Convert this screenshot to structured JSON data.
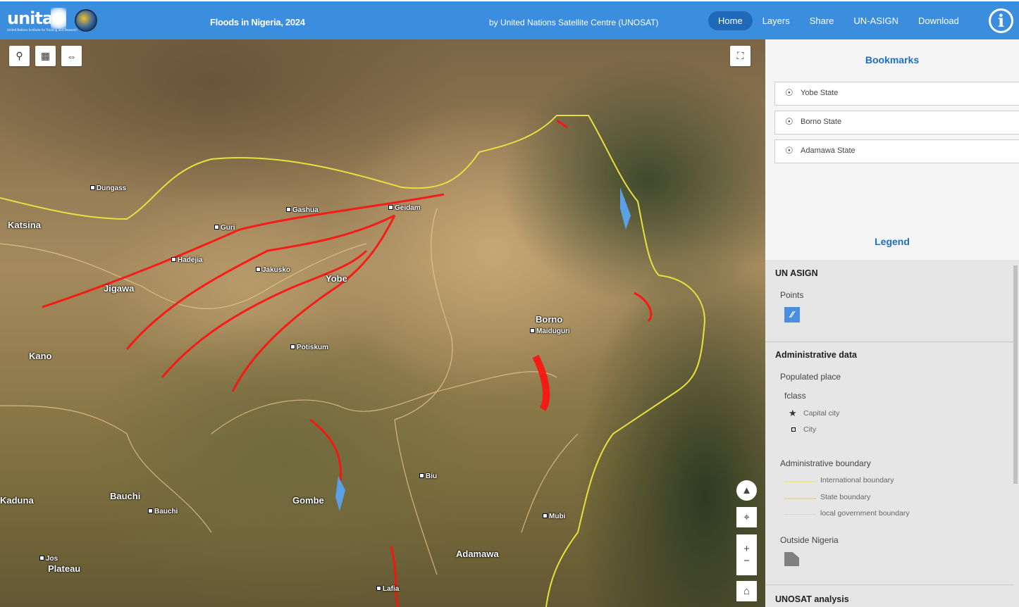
{
  "header": {
    "logos": [
      "UNITAR",
      "UNOSAT"
    ],
    "title": "Floods in Nigeria, 2024",
    "byline": "by United Nations Satellite Centre (UNOSAT)",
    "nav": [
      "Home",
      "Layers",
      "Share",
      "UN-ASIGN",
      "Download"
    ],
    "active": "Home"
  },
  "map": {
    "tools": [
      "search-icon",
      "qr-icon",
      "measure-icon"
    ],
    "places": {
      "dungass": "Dungass",
      "katsina": "Katsina",
      "gashua": "Gashua",
      "geidam": "Geidam",
      "guri": "Guri",
      "hadejia": "Hadejia",
      "jakusko": "Jakusko",
      "yobe": "Yobe",
      "jigawa": "Jigawa",
      "borno": "Borno",
      "maiduguri": "Maiduguri",
      "potiskum": "Potiskum",
      "kano": "Kano",
      "biu": "Biu",
      "bauchi_state": "Bauchi",
      "gombe": "Gombe",
      "kaduna": "Kaduna",
      "bauchi_city": "Bauchi",
      "mubi": "Mubi",
      "jos": "Jos",
      "plateau": "Plateau",
      "adamawa": "Adamawa",
      "lafia": "Lafia"
    },
    "colors": {
      "flood": "#ff0000",
      "water": "#5aa0e6",
      "international": "#e8e040",
      "state": "#e8c890"
    }
  },
  "bookmarks": {
    "title": "Bookmarks",
    "items": [
      "Yobe State",
      "Borno State",
      "Adamawa State"
    ]
  },
  "legend": {
    "title": "Legend",
    "un_asign": {
      "title": "UN ASIGN",
      "points": "Points"
    },
    "admin": {
      "title": "Administrative data",
      "populated": "Populated place",
      "fclass": "fclass",
      "capital": "Capital city",
      "city": "City",
      "boundary": "Administrative boundary",
      "international": "International boundary",
      "state": "State boundary",
      "local": "local government boundary",
      "outside": "Outside Nigeria"
    },
    "unosat": "UNOSAT analysis"
  }
}
